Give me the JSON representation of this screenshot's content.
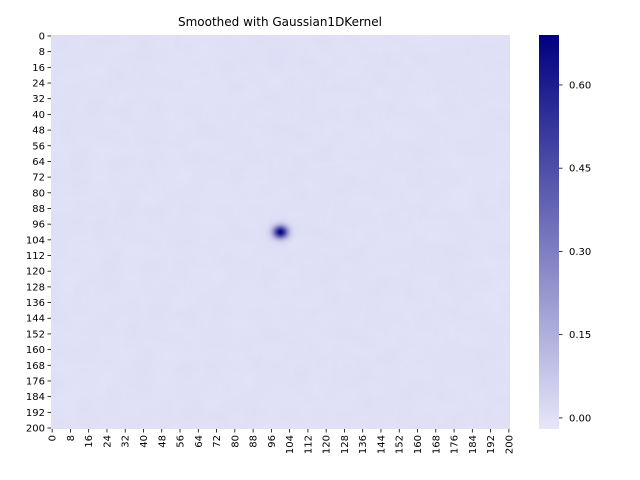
{
  "chart_data": {
    "type": "heatmap",
    "title": "Smoothed with Gaussian1DKernel",
    "xlabel": "",
    "ylabel": "",
    "grid_size": [
      201,
      201
    ],
    "x_tick_labels": [
      "0",
      "8",
      "16",
      "24",
      "32",
      "40",
      "48",
      "56",
      "64",
      "72",
      "80",
      "88",
      "96",
      "104",
      "112",
      "120",
      "128",
      "136",
      "144",
      "152",
      "160",
      "168",
      "176",
      "184",
      "192",
      "200"
    ],
    "y_tick_labels": [
      "0",
      "8",
      "16",
      "24",
      "32",
      "40",
      "48",
      "56",
      "64",
      "72",
      "80",
      "88",
      "96",
      "104",
      "112",
      "120",
      "128",
      "136",
      "144",
      "152",
      "160",
      "168",
      "176",
      "184",
      "192",
      "200"
    ],
    "background_value": 0.0,
    "peak": {
      "x": 100,
      "y": 100,
      "value": 0.69,
      "sigma": 2.2
    },
    "noise_amplitude": 0.012,
    "colorbar": {
      "vmin": -0.02,
      "vmax": 0.69,
      "ticks": [
        0.0,
        0.15,
        0.3,
        0.45,
        0.6
      ],
      "tick_labels": [
        "0.00",
        "0.15",
        "0.30",
        "0.45",
        "0.60"
      ],
      "color_low": "#e6e6fa",
      "color_high": "#00007f"
    }
  }
}
